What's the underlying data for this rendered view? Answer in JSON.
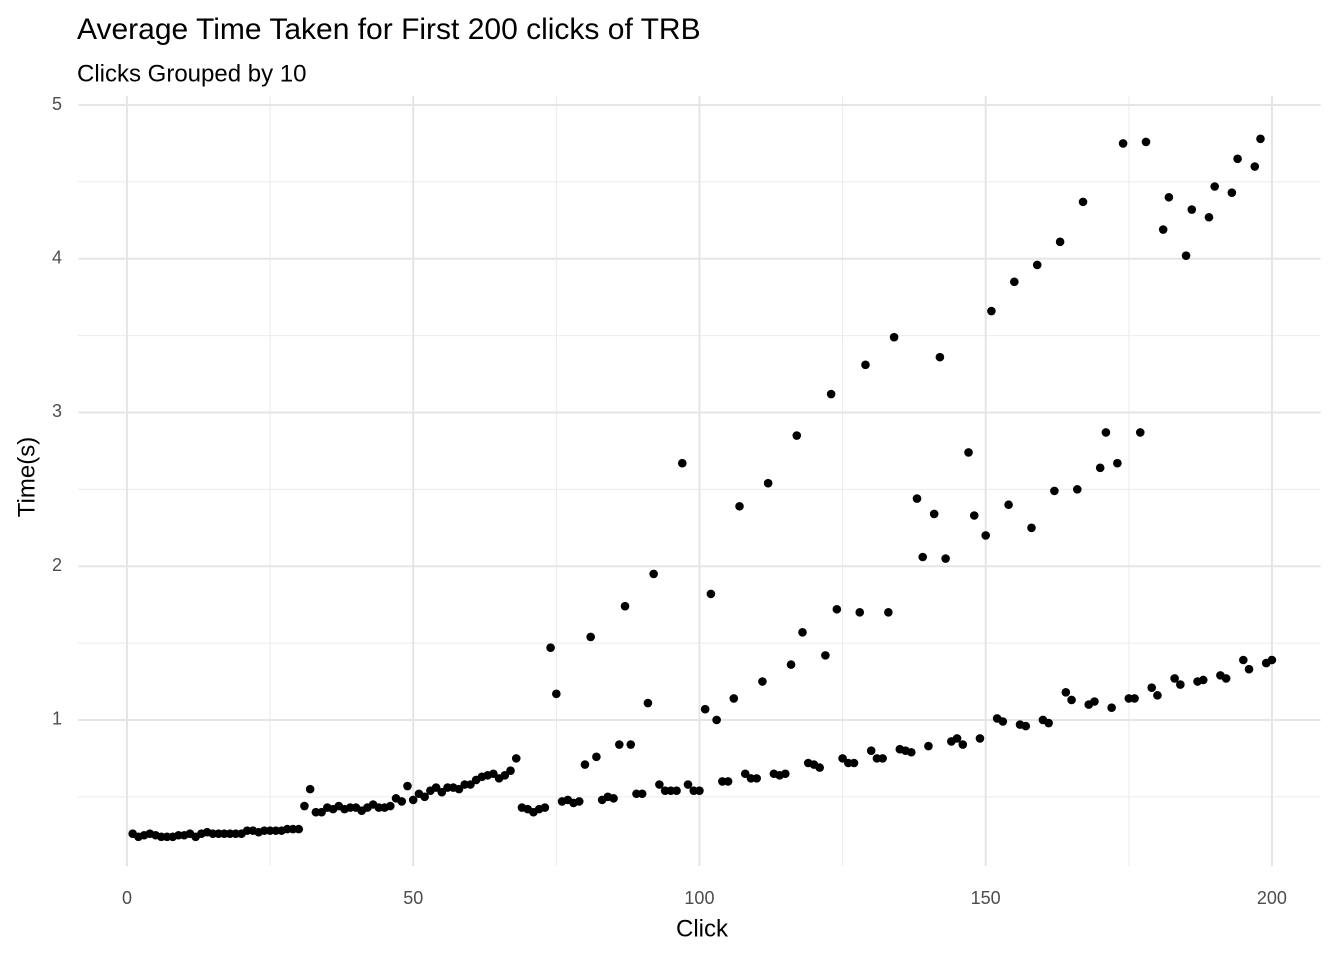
{
  "chart_data": {
    "type": "scatter",
    "title": "Average Time Taken for First 200 clicks of TRB",
    "subtitle": "Clicks Grouped by 10",
    "x_label": "Click",
    "y_label": "Time(s)",
    "color": "#000000",
    "grid": true,
    "xlim": [
      -8.5,
      208.5
    ],
    "ylim": [
      0.05,
      5.06
    ],
    "xticks": [
      0,
      50,
      100,
      150,
      200
    ],
    "yticks": [
      1,
      2,
      3,
      4,
      5
    ],
    "x_minor_ticks": [
      25,
      75,
      125,
      175
    ],
    "y_minor_ticks": [
      0.5,
      1.5,
      2.5,
      3.5,
      4.5
    ],
    "x": [
      1,
      2,
      3,
      4,
      5,
      6,
      7,
      8,
      9,
      10,
      11,
      12,
      13,
      14,
      15,
      16,
      17,
      18,
      19,
      20,
      21,
      22,
      23,
      24,
      25,
      26,
      27,
      28,
      29,
      30,
      31,
      32,
      33,
      34,
      35,
      36,
      37,
      38,
      39,
      40,
      41,
      42,
      43,
      44,
      45,
      46,
      47,
      48,
      49,
      50,
      51,
      52,
      53,
      54,
      55,
      56,
      57,
      58,
      59,
      60,
      61,
      62,
      63,
      64,
      65,
      66,
      67,
      68,
      69,
      70,
      71,
      72,
      73,
      74,
      75,
      76,
      77,
      78,
      79,
      80,
      81,
      82,
      83,
      84,
      85,
      86,
      87,
      88,
      89,
      90,
      91,
      92,
      93,
      94,
      95,
      96,
      97,
      98,
      99,
      100,
      101,
      102,
      103,
      104,
      105,
      106,
      107,
      108,
      109,
      110,
      111,
      112,
      113,
      114,
      115,
      116,
      117,
      118,
      119,
      120,
      121,
      122,
      123,
      124,
      125,
      126,
      127,
      128,
      129,
      130,
      131,
      132,
      133,
      134,
      135,
      136,
      137,
      138,
      139,
      140,
      141,
      142,
      143,
      144,
      145,
      146,
      147,
      148,
      149,
      150,
      151,
      152,
      153,
      154,
      155,
      156,
      157,
      158,
      159,
      160,
      161,
      162,
      163,
      164,
      165,
      166,
      167,
      168,
      169,
      170,
      171,
      172,
      173,
      174,
      175,
      176,
      177,
      178,
      179,
      180,
      181,
      182,
      183,
      184,
      185,
      186,
      187,
      188,
      189,
      190,
      191,
      192,
      193,
      194,
      195,
      196,
      197,
      198,
      199,
      200
    ],
    "values": [
      0.26,
      0.24,
      0.25,
      0.26,
      0.25,
      0.24,
      0.24,
      0.24,
      0.25,
      0.25,
      0.26,
      0.24,
      0.26,
      0.27,
      0.26,
      0.26,
      0.26,
      0.26,
      0.26,
      0.26,
      0.28,
      0.28,
      0.27,
      0.28,
      0.28,
      0.28,
      0.28,
      0.29,
      0.29,
      0.29,
      0.44,
      0.55,
      0.4,
      0.4,
      0.43,
      0.42,
      0.44,
      0.42,
      0.43,
      0.43,
      0.41,
      0.43,
      0.45,
      0.43,
      0.43,
      0.44,
      0.49,
      0.47,
      0.57,
      0.48,
      0.52,
      0.5,
      0.54,
      0.56,
      0.53,
      0.56,
      0.56,
      0.55,
      0.58,
      0.58,
      0.61,
      0.63,
      0.64,
      0.65,
      0.62,
      0.64,
      0.67,
      0.75,
      0.43,
      0.42,
      0.4,
      0.42,
      0.43,
      1.47,
      1.17,
      0.47,
      0.48,
      0.46,
      0.47,
      0.71,
      1.54,
      0.76,
      0.48,
      0.5,
      0.49,
      0.84,
      1.74,
      0.84,
      0.52,
      0.52,
      1.11,
      1.95,
      0.58,
      0.54,
      0.54,
      0.54,
      2.67,
      0.58,
      0.54,
      0.54,
      1.07,
      1.82,
      1.0,
      0.6,
      0.6,
      1.14,
      2.39,
      0.65,
      0.62,
      0.62,
      1.25,
      2.54,
      0.65,
      0.64,
      0.65,
      1.36,
      2.85,
      1.57,
      0.72,
      0.71,
      0.69,
      1.42,
      3.12,
      1.72,
      0.75,
      0.72,
      0.72,
      1.7,
      3.31,
      0.8,
      0.75,
      0.75,
      1.7,
      3.49,
      0.81,
      0.8,
      0.79,
      2.44,
      2.06,
      0.83,
      2.34,
      3.36,
      2.05,
      0.86,
      0.88,
      0.84,
      2.74,
      2.33,
      0.88,
      2.2,
      3.66,
      1.01,
      0.99,
      2.4,
      3.85,
      0.97,
      0.96,
      2.25,
      3.96,
      1.0,
      0.98,
      2.49,
      4.11,
      1.18,
      1.13,
      2.5,
      4.37,
      1.1,
      1.12,
      2.64,
      2.87,
      1.08,
      2.67,
      4.75,
      1.14,
      1.14,
      2.87,
      4.76,
      1.21,
      1.16,
      4.19,
      4.4,
      1.27,
      1.23,
      4.02,
      4.32,
      1.25,
      1.26,
      4.27,
      4.47,
      1.29,
      1.27,
      4.43,
      4.65,
      1.39,
      1.33,
      4.6,
      4.78,
      1.37,
      1.39
    ]
  }
}
